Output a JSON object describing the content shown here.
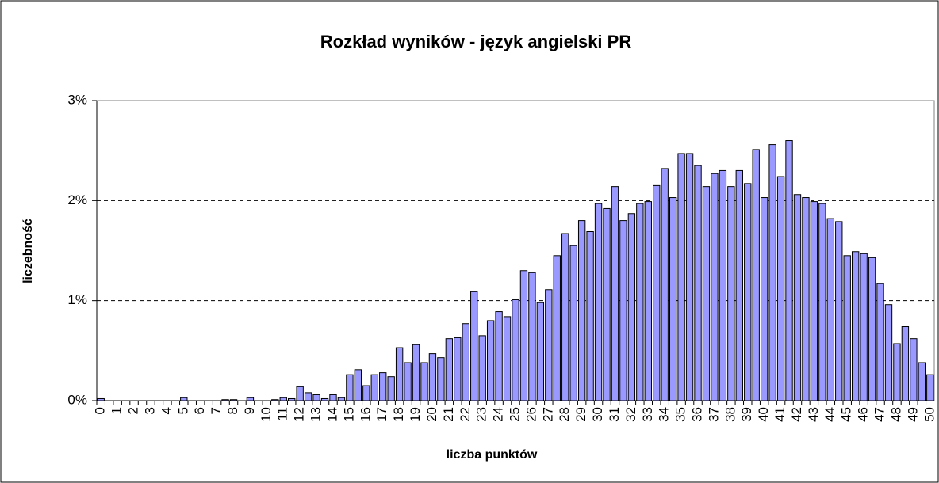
{
  "chart_data": {
    "type": "bar",
    "title": "Rozkład wyników - język angielski PR",
    "x_label": "liczba punktów",
    "y_label": "liczebność",
    "categories": [
      "0",
      null,
      "1",
      null,
      "2",
      null,
      "3",
      null,
      "4",
      null,
      "5",
      null,
      "6",
      null,
      "7",
      null,
      "8",
      null,
      "9",
      null,
      "10",
      null,
      "11",
      null,
      "12",
      null,
      "13",
      null,
      "14",
      null,
      "15",
      null,
      "16",
      null,
      "17",
      null,
      "18",
      null,
      "19",
      null,
      "20",
      null,
      "21",
      null,
      "22",
      null,
      "23",
      null,
      "24",
      null,
      "25",
      null,
      "26",
      null,
      "27",
      null,
      "28",
      null,
      "29",
      null,
      "30",
      null,
      "31",
      null,
      "32",
      null,
      "33",
      null,
      "34",
      null,
      "35",
      null,
      "36",
      null,
      "37",
      null,
      "38",
      null,
      "39",
      null,
      "40",
      null,
      "41",
      null,
      "42",
      null,
      "43",
      null,
      "44",
      null,
      "45",
      null,
      "46",
      null,
      "47",
      null,
      "48",
      null,
      "49",
      null,
      "50"
    ],
    "values": [
      0.02,
      0,
      0,
      0,
      0,
      0,
      0,
      0,
      0,
      0,
      0.03,
      0,
      0,
      0,
      0,
      0.01,
      0.01,
      0,
      0.03,
      0,
      0,
      0.01,
      0.03,
      0.02,
      0.14,
      0.08,
      0.06,
      0.02,
      0.06,
      0.03,
      0.26,
      0.31,
      0.15,
      0.26,
      0.28,
      0.24,
      0.53,
      0.38,
      0.56,
      0.38,
      0.47,
      0.43,
      0.62,
      0.63,
      0.77,
      1.09,
      0.65,
      0.8,
      0.89,
      0.84,
      1.01,
      1.3,
      1.28,
      0.98,
      1.11,
      1.45,
      1.67,
      1.55,
      1.8,
      1.69,
      1.97,
      1.92,
      2.14,
      1.8,
      1.87,
      1.97,
      1.99,
      2.15,
      2.32,
      2.03,
      2.47,
      2.47,
      2.35,
      2.14,
      2.27,
      2.3,
      2.14,
      2.3,
      2.17,
      2.51,
      2.03,
      2.56,
      2.24,
      2.6,
      2.06,
      2.03,
      1.99,
      1.97,
      1.82,
      1.79,
      1.45,
      1.49,
      1.47,
      1.43,
      1.17,
      0.96,
      0.57,
      0.74,
      0.62,
      0.38,
      0.26
    ],
    "color": "#9999ff",
    "ylim": [
      0,
      3
    ],
    "yticks": [
      {
        "value": 0,
        "label": "0%"
      },
      {
        "value": 1,
        "label": "1%"
      },
      {
        "value": 2,
        "label": "2%"
      },
      {
        "value": 3,
        "label": "3%"
      }
    ],
    "grid": true
  }
}
